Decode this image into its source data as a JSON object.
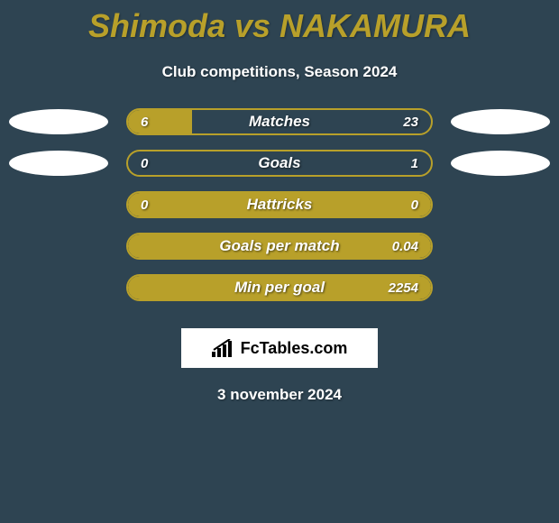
{
  "title": "Shimoda vs NAKAMURA",
  "subtitle": "Club competitions, Season 2024",
  "date": "3 november 2024",
  "logo_text": "FcTables.com",
  "colors": {
    "background": "#2e4452",
    "accent": "#b8a02a",
    "white": "#ffffff"
  },
  "rows": [
    {
      "label": "Matches",
      "left": "6",
      "right": "23",
      "fill_pct": 21,
      "show_ellipses": true,
      "show_left_val": true
    },
    {
      "label": "Goals",
      "left": "0",
      "right": "1",
      "fill_pct": 0,
      "show_ellipses": true,
      "show_left_val": true
    },
    {
      "label": "Hattricks",
      "left": "0",
      "right": "0",
      "fill_pct": 100,
      "show_ellipses": false,
      "show_left_val": true
    },
    {
      "label": "Goals per match",
      "left": "",
      "right": "0.04",
      "fill_pct": 100,
      "show_ellipses": false,
      "show_left_val": false
    },
    {
      "label": "Min per goal",
      "left": "",
      "right": "2254",
      "fill_pct": 100,
      "show_ellipses": false,
      "show_left_val": false
    }
  ]
}
